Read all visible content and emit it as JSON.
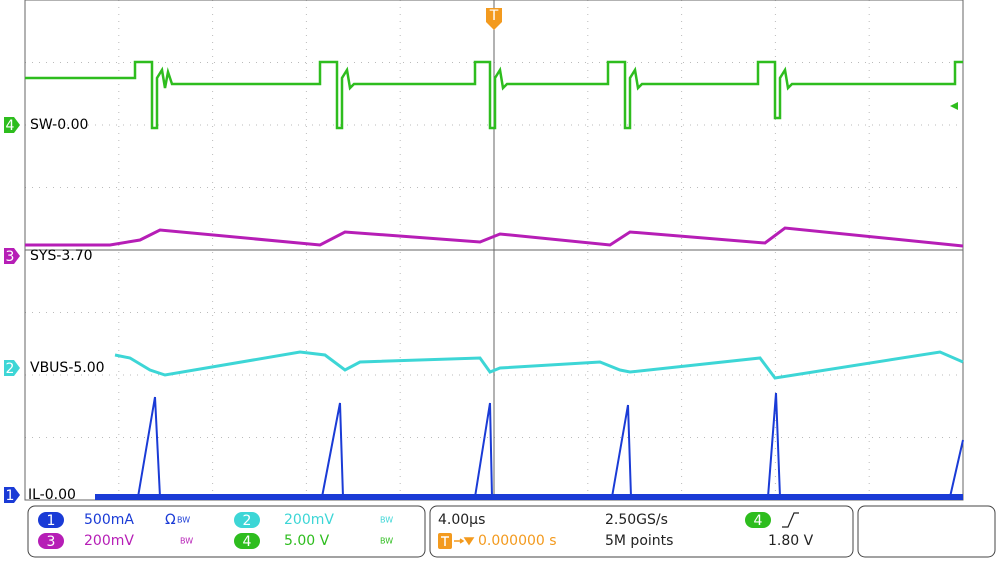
{
  "channels": [
    {
      "number": "4",
      "label": "SW-0.00"
    },
    {
      "number": "3",
      "label": "SYS-3.70"
    },
    {
      "number": "2",
      "label": "VBUS-5.00"
    },
    {
      "number": "1",
      "label": "IL-0.00"
    }
  ],
  "trigger_marker": "T",
  "vertical_settings": [
    {
      "channel": "1",
      "scale": "500mA",
      "coupling": "Ω",
      "bandwidth": "BW"
    },
    {
      "channel": "2",
      "scale": "200mV",
      "bandwidth": "BW"
    },
    {
      "channel": "3",
      "scale": "200mV",
      "bandwidth": "BW"
    },
    {
      "channel": "4",
      "scale": "5.00 V",
      "bandwidth": "BW"
    }
  ],
  "horizontal": {
    "timebase": "4.00µs",
    "sample_rate": "2.50GS/s",
    "trigger_position": "0.000000 s",
    "record_length": "5M points"
  },
  "trigger": {
    "source": "4",
    "level": "1.80 V"
  }
}
